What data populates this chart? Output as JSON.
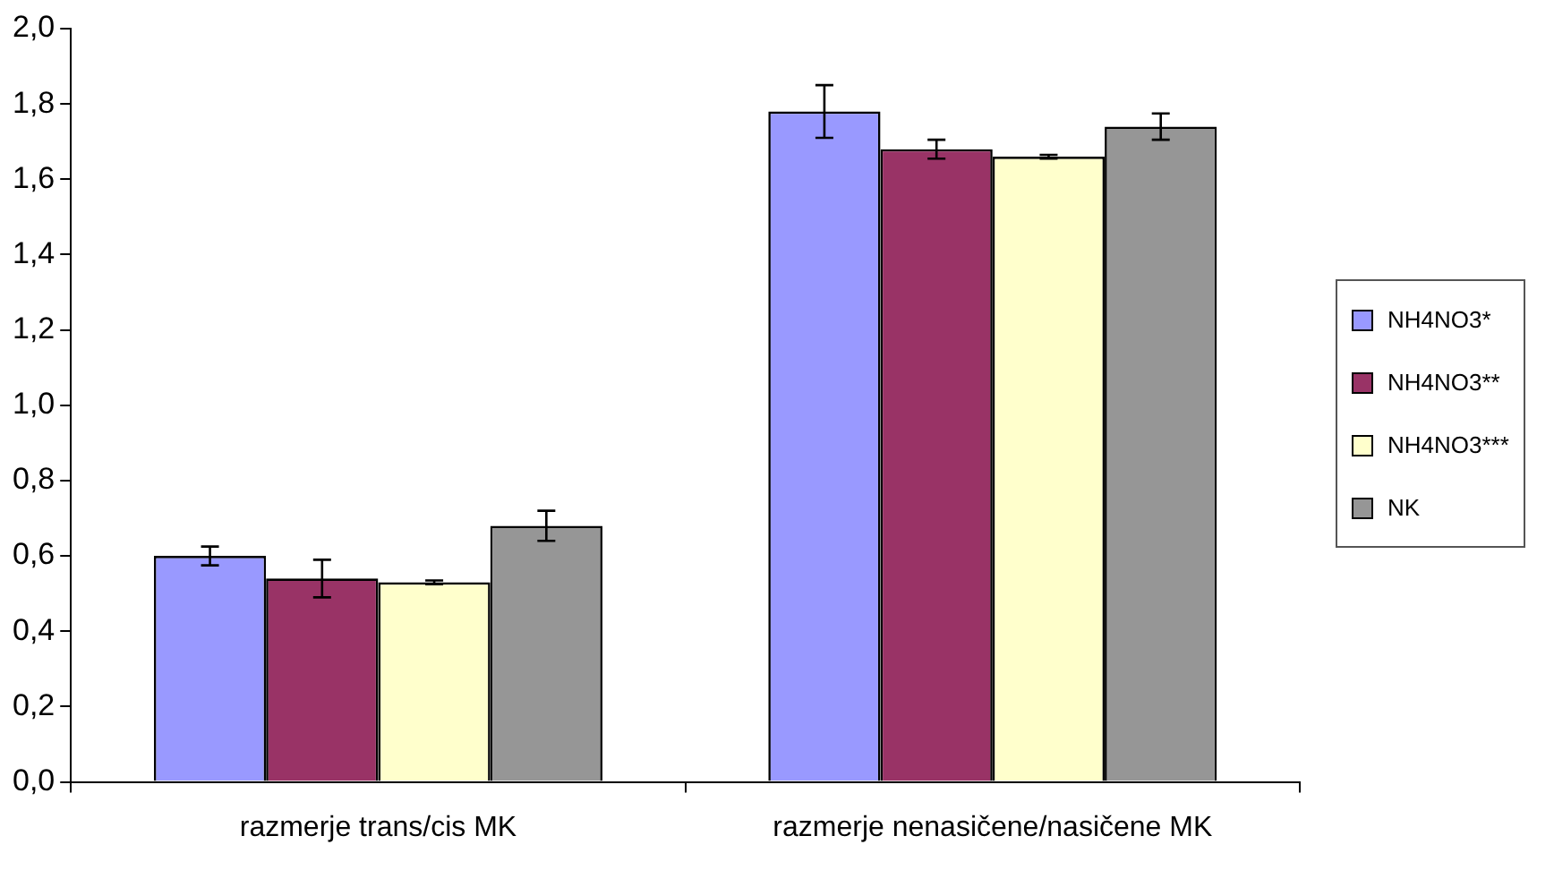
{
  "chart_data": {
    "type": "bar",
    "categories": [
      "razmerje trans/cis MK",
      "razmerje nenasičene/nasičene MK"
    ],
    "series": [
      {
        "name": "NH4NO3*",
        "color": "#9999ff",
        "values": [
          0.6,
          1.78
        ],
        "errors": [
          0.025,
          0.07
        ]
      },
      {
        "name": "NH4NO3**",
        "color": "#993366",
        "values": [
          0.54,
          1.68
        ],
        "errors": [
          0.05,
          0.025
        ]
      },
      {
        "name": "NH4NO3***",
        "color": "#ffffcc",
        "values": [
          0.53,
          1.66
        ],
        "errors": [
          0.005,
          0.005
        ]
      },
      {
        "name": "NK",
        "color": "#969696",
        "values": [
          0.68,
          1.74
        ],
        "errors": [
          0.04,
          0.035
        ]
      }
    ],
    "ylim": [
      0,
      2
    ],
    "yticks": [
      {
        "value": 0,
        "label": "0,0"
      },
      {
        "value": 0.2,
        "label": "0,2"
      },
      {
        "value": 0.4,
        "label": "0,4"
      },
      {
        "value": 0.6,
        "label": "0,6"
      },
      {
        "value": 0.8,
        "label": "0,8"
      },
      {
        "value": 1,
        "label": "1,0"
      },
      {
        "value": 1.2,
        "label": "1,2"
      },
      {
        "value": 1.4,
        "label": "1,4"
      },
      {
        "value": 1.6,
        "label": "1,6"
      },
      {
        "value": 1.8,
        "label": "1,8"
      },
      {
        "value": 2,
        "label": "2,0"
      }
    ],
    "grid": false,
    "legend": "right"
  }
}
